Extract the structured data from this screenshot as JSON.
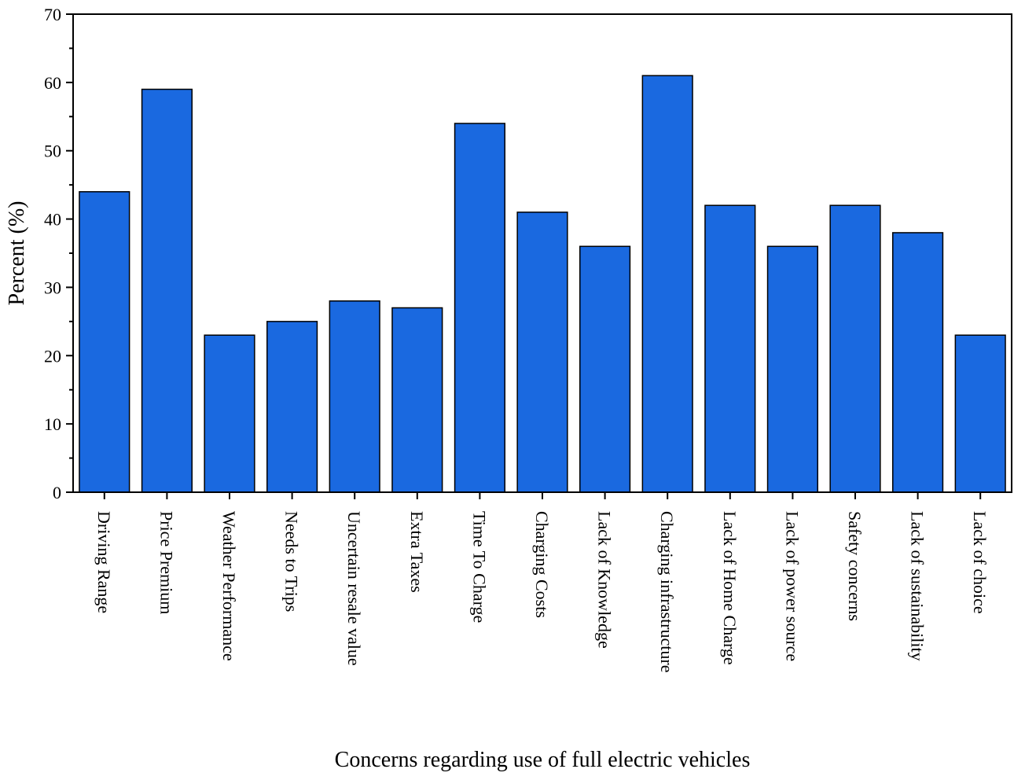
{
  "chart_data": {
    "type": "bar",
    "title": "",
    "xlabel": "Concerns regarding use of full electric vehicles",
    "ylabel": "Percent (%)",
    "ylim": [
      0,
      70
    ],
    "yticks": [
      0,
      10,
      20,
      30,
      40,
      50,
      60,
      70
    ],
    "grid": false,
    "legend": "none",
    "bar_color": "#1a69e0",
    "categories": [
      "Driving Range",
      "Price Premium",
      "Weather Performance",
      "Needs to Trips",
      "Uncertain resale value",
      "Extra Taxes",
      "Time To Charge",
      "Charging Costs",
      "Lack of Knowledge",
      "Charging infrastructure",
      "Lack of Home Charge",
      "Lack of power source",
      "Safety concerns",
      "Lack of sustainability",
      "Lack of choice"
    ],
    "values": [
      44,
      59,
      23,
      25,
      28,
      27,
      54,
      41,
      36,
      61,
      42,
      36,
      42,
      38,
      23
    ]
  }
}
